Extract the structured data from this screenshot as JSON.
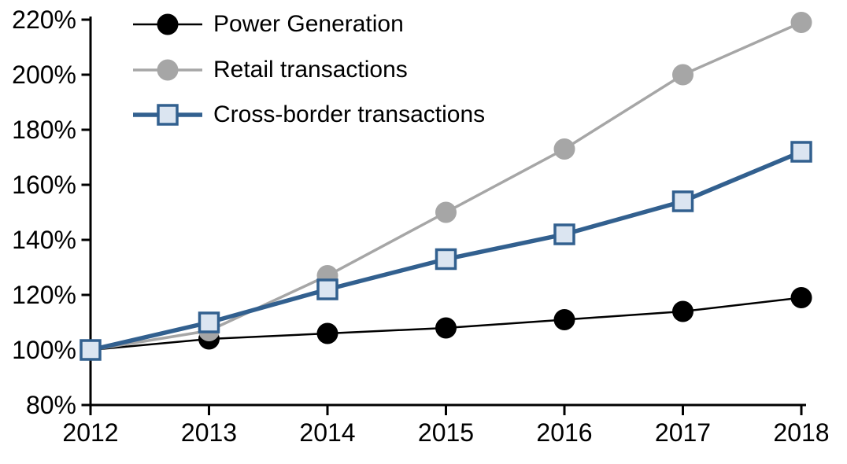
{
  "chart_data": {
    "type": "line",
    "title": "",
    "xlabel": "",
    "ylabel": "",
    "categories": [
      "2012",
      "2013",
      "2014",
      "2015",
      "2016",
      "2017",
      "2018"
    ],
    "series": [
      {
        "name": "Power Generation",
        "slug": "power-generation",
        "color": "#000000",
        "marker": "circle",
        "marker_fill": "#000000",
        "line_width": 2.5,
        "values": [
          100,
          104,
          106,
          108,
          111,
          114,
          119
        ]
      },
      {
        "name": "Retail transactions",
        "slug": "retail-transactions",
        "color": "#a6a6a6",
        "marker": "circle",
        "marker_fill": "#a6a6a6",
        "line_width": 3.5,
        "values": [
          100,
          107,
          127,
          150,
          173,
          200,
          219
        ]
      },
      {
        "name": "Cross-border transactions",
        "slug": "cross-border-transactions",
        "color": "#32608f",
        "marker": "square",
        "marker_fill": "#dbe5f1",
        "line_width": 5.5,
        "values": [
          100,
          110,
          122,
          133,
          142,
          154,
          172
        ]
      }
    ],
    "ylim": [
      80,
      220
    ],
    "ytick_values": [
      80,
      100,
      120,
      140,
      160,
      180,
      200,
      220
    ],
    "ytick_labels": [
      "80%",
      "100%",
      "120%",
      "140%",
      "160%",
      "180%",
      "200%",
      "220%"
    ],
    "grid": false,
    "legend_position": "top-left",
    "axis_color": "#000000"
  }
}
